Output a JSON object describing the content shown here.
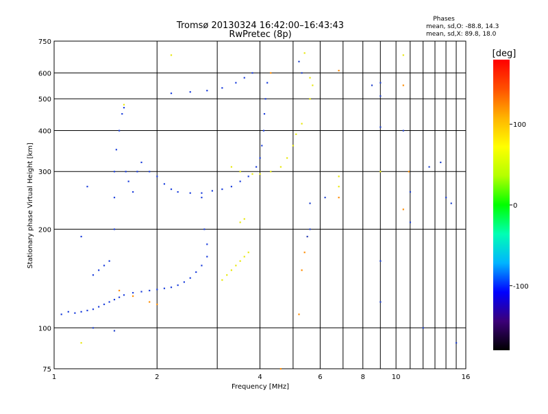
{
  "chart_data": {
    "type": "scatter",
    "title": "Tromsø 20130324 16:42:00–16:43:43",
    "subtitle": "RwPretec (8p)",
    "xlabel": "Frequency [MHz]",
    "ylabel": "Stationary phase Virtual Height [km]",
    "x_scale": "log",
    "y_scale": "log",
    "xlim": [
      1,
      16
    ],
    "ylim": [
      75,
      750
    ],
    "x_ticks": [
      1,
      2,
      4,
      6,
      8,
      10,
      16
    ],
    "x_tick_labels": [
      "1",
      "2",
      "4",
      "6",
      "8",
      "10",
      "16"
    ],
    "y_ticks": [
      75,
      100,
      200,
      300,
      400,
      500,
      600,
      750
    ],
    "y_tick_labels": [
      "75",
      "100",
      "200",
      "300",
      "400",
      "500",
      "600",
      "750"
    ],
    "x_gridlines": [
      1,
      2,
      3,
      4,
      5,
      6,
      7,
      8,
      9,
      10,
      11,
      12,
      13,
      14,
      15,
      16
    ],
    "y_gridlines": [
      75,
      100,
      200,
      300,
      400,
      500,
      600,
      750
    ],
    "grid": true,
    "phase_box": {
      "title": "Phases",
      "line1": "mean, sd,O: -88.8, 14.3",
      "line2": "mean, sd,X:  89.8, 18.0"
    },
    "colorbar": {
      "label": "[deg]",
      "range": [
        -180,
        180
      ],
      "ticks": [
        100,
        0,
        -100
      ],
      "tick_labels": [
        "100",
        "0",
        "-100"
      ],
      "colors": [
        "#000000",
        "#3c0078",
        "#0000ff",
        "#00b4ff",
        "#00ffb4",
        "#00ff00",
        "#b4ff00",
        "#ffff00",
        "#ffb400",
        "#ff5000",
        "#ff0000"
      ],
      "placement": "right"
    },
    "series": [
      {
        "name": "O",
        "color": "#1c3fdc",
        "points": [
          [
            1.05,
            110
          ],
          [
            1.1,
            112
          ],
          [
            1.15,
            111
          ],
          [
            1.2,
            112
          ],
          [
            1.25,
            113
          ],
          [
            1.3,
            114
          ],
          [
            1.35,
            116
          ],
          [
            1.4,
            118
          ],
          [
            1.45,
            120
          ],
          [
            1.5,
            122
          ],
          [
            1.55,
            124
          ],
          [
            1.6,
            126
          ],
          [
            1.7,
            128
          ],
          [
            1.8,
            129
          ],
          [
            1.9,
            130
          ],
          [
            2.0,
            131
          ],
          [
            2.1,
            132
          ],
          [
            2.2,
            133
          ],
          [
            2.3,
            135
          ],
          [
            2.4,
            138
          ],
          [
            2.5,
            142
          ],
          [
            2.6,
            148
          ],
          [
            2.7,
            155
          ],
          [
            2.8,
            165
          ],
          [
            1.5,
            200
          ],
          [
            1.5,
            250
          ],
          [
            1.5,
            300
          ],
          [
            1.52,
            350
          ],
          [
            1.55,
            400
          ],
          [
            1.58,
            450
          ],
          [
            1.6,
            470
          ],
          [
            1.62,
            300
          ],
          [
            1.65,
            280
          ],
          [
            1.7,
            260
          ],
          [
            1.75,
            300
          ],
          [
            1.8,
            320
          ],
          [
            1.9,
            300
          ],
          [
            2.0,
            290
          ],
          [
            2.1,
            275
          ],
          [
            2.2,
            265
          ],
          [
            2.3,
            260
          ],
          [
            2.5,
            258
          ],
          [
            2.7,
            258
          ],
          [
            2.9,
            262
          ],
          [
            3.1,
            265
          ],
          [
            3.3,
            270
          ],
          [
            3.5,
            280
          ],
          [
            3.7,
            290
          ],
          [
            3.9,
            310
          ],
          [
            4.0,
            330
          ],
          [
            4.05,
            360
          ],
          [
            4.1,
            400
          ],
          [
            4.12,
            450
          ],
          [
            4.15,
            500
          ],
          [
            4.2,
            560
          ],
          [
            2.2,
            520
          ],
          [
            2.5,
            525
          ],
          [
            2.8,
            530
          ],
          [
            3.1,
            540
          ],
          [
            3.4,
            560
          ],
          [
            3.6,
            580
          ],
          [
            3.8,
            600
          ],
          [
            1.35,
            150
          ],
          [
            1.4,
            155
          ],
          [
            1.45,
            160
          ],
          [
            1.3,
            145
          ],
          [
            2.8,
            180
          ],
          [
            2.75,
            200
          ],
          [
            2.7,
            250
          ],
          [
            1.25,
            270
          ],
          [
            1.2,
            190
          ]
        ]
      },
      {
        "name": "X",
        "color": "#e8e80c",
        "points": [
          [
            3.1,
            140
          ],
          [
            3.2,
            145
          ],
          [
            3.3,
            150
          ],
          [
            3.4,
            155
          ],
          [
            3.5,
            160
          ],
          [
            3.6,
            165
          ],
          [
            3.7,
            170
          ],
          [
            3.3,
            310
          ],
          [
            3.5,
            300
          ],
          [
            3.8,
            295
          ],
          [
            4.0,
            295
          ],
          [
            4.3,
            300
          ],
          [
            4.6,
            310
          ],
          [
            4.8,
            330
          ],
          [
            5.0,
            360
          ],
          [
            5.1,
            390
          ],
          [
            5.3,
            420
          ],
          [
            5.6,
            500
          ],
          [
            5.7,
            550
          ],
          [
            5.6,
            580
          ],
          [
            3.6,
            215
          ],
          [
            3.5,
            210
          ],
          [
            1.6,
            480
          ],
          [
            2.2,
            680
          ],
          [
            5.4,
            690
          ],
          [
            10.5,
            680
          ],
          [
            6.8,
            270
          ],
          [
            6.8,
            290
          ],
          [
            1.2,
            90
          ],
          [
            9.0,
            300
          ]
        ]
      },
      {
        "name": "other",
        "color": "#ff8c00",
        "points": [
          [
            5.2,
            110
          ],
          [
            5.3,
            150
          ],
          [
            5.4,
            170
          ],
          [
            5.5,
            190
          ],
          [
            6.8,
            250
          ],
          [
            6.8,
            610
          ],
          [
            10.5,
            230
          ],
          [
            10.9,
            300
          ],
          [
            1.55,
            130
          ],
          [
            1.7,
            125
          ],
          [
            1.9,
            120
          ],
          [
            2.0,
            118
          ],
          [
            4.6,
            75
          ],
          [
            4.3,
            600
          ],
          [
            10.5,
            550
          ]
        ]
      },
      {
        "name": "sparse",
        "color": "#2244cc",
        "points": [
          [
            5.6,
            200
          ],
          [
            5.5,
            190
          ],
          [
            5.6,
            240
          ],
          [
            6.2,
            250
          ],
          [
            8.5,
            550
          ],
          [
            9.0,
            560
          ],
          [
            9.0,
            510
          ],
          [
            9.0,
            410
          ],
          [
            9.0,
            160
          ],
          [
            9.0,
            120
          ],
          [
            10.5,
            400
          ],
          [
            11.0,
            210
          ],
          [
            12.0,
            100
          ],
          [
            12.5,
            310
          ],
          [
            13.5,
            320
          ],
          [
            14.0,
            250
          ],
          [
            14.5,
            240
          ],
          [
            15.0,
            90
          ],
          [
            5.2,
            650
          ],
          [
            5.3,
            600
          ],
          [
            1.3,
            100
          ],
          [
            1.5,
            98
          ],
          [
            11.0,
            260
          ]
        ]
      }
    ]
  }
}
